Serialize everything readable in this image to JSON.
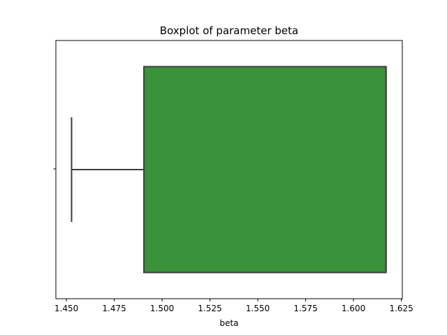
{
  "chart_data": {
    "type": "boxplot",
    "title": "Boxplot of parameter beta",
    "xlabel": "beta",
    "ylabel": "",
    "orientation": "horizontal",
    "xlim": [
      1.4445,
      1.6255
    ],
    "xticks": [
      1.45,
      1.475,
      1.5,
      1.525,
      1.55,
      1.575,
      1.6,
      1.625
    ],
    "xtick_labels": [
      "1.450",
      "1.475",
      "1.500",
      "1.525",
      "1.550",
      "1.575",
      "1.600",
      "1.625"
    ],
    "grid": false,
    "box": {
      "whisker_low": 1.4527,
      "q1": 1.4905,
      "median": 1.617,
      "q3": 1.617,
      "whisker_high": 1.617
    },
    "colors": {
      "box_fill": "#3a923a",
      "box_edge": "#3d3d3d",
      "axis": "#000000"
    }
  }
}
